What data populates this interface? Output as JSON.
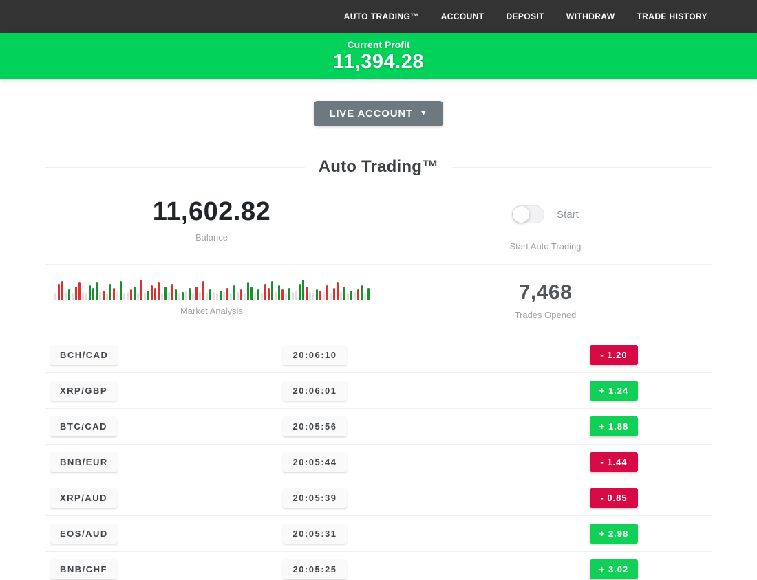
{
  "nav": {
    "items": [
      {
        "label": "AUTO TRADING™"
      },
      {
        "label": "ACCOUNT"
      },
      {
        "label": "DEPOSIT"
      },
      {
        "label": "WITHDRAW"
      },
      {
        "label": "TRADE HISTORY"
      }
    ]
  },
  "profit_banner": {
    "label": "Current Profit",
    "value": "11,394.28"
  },
  "account_selector": {
    "label": "LIVE ACCOUNT",
    "caret": "▼"
  },
  "section": {
    "title": "Auto Trading™"
  },
  "stats": {
    "balance": {
      "value": "11,602.82",
      "label": "Balance"
    },
    "auto_trading": {
      "toggle_label": "Start",
      "caption": "Start Auto Trading",
      "toggle_state": "off"
    },
    "market_analysis": {
      "label": "Market Analysis"
    },
    "trades_opened": {
      "value": "7,468",
      "label": "Trades Opened"
    }
  },
  "colors": {
    "nav_bg": "#333333",
    "banner_green": "#02d15a",
    "gain_badge": "#12cf57",
    "loss_badge": "#d60b46",
    "bar_up": "#1a8f2e",
    "bar_down": "#e03131",
    "bar_neutral": "#e2e2e2",
    "button_gray": "#6e797f"
  },
  "chart_data": {
    "type": "bar",
    "title": "Market Analysis",
    "description": "decorative mini market-analysis strip of red/green/gray ticks, bottom-aligned, heights in px of 30px max",
    "bars": [
      [
        "n",
        10
      ],
      [
        "r",
        24
      ],
      [
        "r",
        28
      ],
      [
        "n",
        12
      ],
      [
        "g",
        16
      ],
      [
        "n",
        10
      ],
      [
        "r",
        20
      ],
      [
        "r",
        26
      ],
      [
        "n",
        12
      ],
      [
        "n",
        11
      ],
      [
        "g",
        22
      ],
      [
        "g",
        18
      ],
      [
        "g",
        26
      ],
      [
        "n",
        12
      ],
      [
        "r",
        14
      ],
      [
        "n",
        10
      ],
      [
        "g",
        24
      ],
      [
        "r",
        18
      ],
      [
        "n",
        12
      ],
      [
        "g",
        28
      ],
      [
        "n",
        10
      ],
      [
        "n",
        12
      ],
      [
        "r",
        16
      ],
      [
        "g",
        20
      ],
      [
        "n",
        10
      ],
      [
        "r",
        30
      ],
      [
        "n",
        12
      ],
      [
        "g",
        14
      ],
      [
        "r",
        22
      ],
      [
        "r",
        18
      ],
      [
        "r",
        26
      ],
      [
        "n",
        10
      ],
      [
        "g",
        20
      ],
      [
        "n",
        12
      ],
      [
        "r",
        24
      ],
      [
        "g",
        16
      ],
      [
        "n",
        10
      ],
      [
        "g",
        12
      ],
      [
        "n",
        14
      ],
      [
        "g",
        18
      ],
      [
        "n",
        10
      ],
      [
        "r",
        20
      ],
      [
        "n",
        12
      ],
      [
        "r",
        28
      ],
      [
        "n",
        10
      ],
      [
        "g",
        16
      ],
      [
        "n",
        12
      ],
      [
        "n",
        10
      ],
      [
        "g",
        14
      ],
      [
        "n",
        12
      ],
      [
        "r",
        18
      ],
      [
        "n",
        10
      ],
      [
        "g",
        22
      ],
      [
        "n",
        12
      ],
      [
        "r",
        16
      ],
      [
        "n",
        10
      ],
      [
        "g",
        26
      ],
      [
        "g",
        20
      ],
      [
        "n",
        12
      ],
      [
        "g",
        16
      ],
      [
        "n",
        10
      ],
      [
        "r",
        24
      ],
      [
        "r",
        18
      ],
      [
        "g",
        28
      ],
      [
        "n",
        12
      ],
      [
        "g",
        22
      ],
      [
        "r",
        16
      ],
      [
        "n",
        10
      ],
      [
        "g",
        18
      ],
      [
        "n",
        12
      ],
      [
        "n",
        14
      ],
      [
        "g",
        24
      ],
      [
        "g",
        30
      ],
      [
        "r",
        20
      ],
      [
        "n",
        12
      ],
      [
        "n",
        10
      ],
      [
        "g",
        16
      ],
      [
        "r",
        14
      ],
      [
        "n",
        12
      ],
      [
        "r",
        22
      ],
      [
        "n",
        10
      ],
      [
        "r",
        18
      ],
      [
        "r",
        26
      ],
      [
        "n",
        12
      ],
      [
        "g",
        20
      ],
      [
        "n",
        10
      ],
      [
        "g",
        14
      ],
      [
        "n",
        12
      ],
      [
        "r",
        16
      ],
      [
        "g",
        22
      ],
      [
        "n",
        10
      ],
      [
        "g",
        18
      ]
    ]
  },
  "trades": {
    "rows": [
      {
        "pair": "BCH/CAD",
        "time": "20:06:10",
        "change": "-  1.20",
        "direction": "loss"
      },
      {
        "pair": "XRP/GBP",
        "time": "20:06:01",
        "change": "+  1.24",
        "direction": "gain"
      },
      {
        "pair": "BTC/CAD",
        "time": "20:05:56",
        "change": "+  1.88",
        "direction": "gain"
      },
      {
        "pair": "BNB/EUR",
        "time": "20:05:44",
        "change": "-  1.44",
        "direction": "loss"
      },
      {
        "pair": "XRP/AUD",
        "time": "20:05:39",
        "change": "-  0.85",
        "direction": "loss"
      },
      {
        "pair": "EOS/AUD",
        "time": "20:05:31",
        "change": "+  2.98",
        "direction": "gain"
      },
      {
        "pair": "BNB/CHF",
        "time": "20:05:25",
        "change": "+  3.02",
        "direction": "gain"
      }
    ]
  }
}
